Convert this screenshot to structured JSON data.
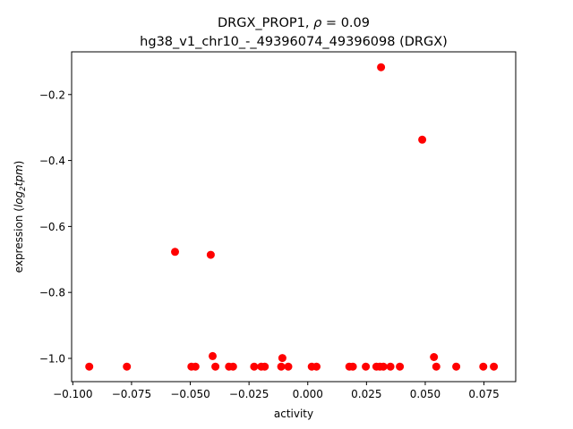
{
  "chart_data": {
    "type": "scatter",
    "title_line1_prefix": "DRGX_PROP1, ",
    "title_rho_symbol": "ρ",
    "title_line1_suffix": " = 0.09",
    "title_line2": "hg38_v1_chr10_-_49396074_49396098 (DRGX)",
    "xlabel": "activity",
    "ylabel_prefix": "expression (",
    "ylabel_math": "log",
    "ylabel_sub": "2",
    "ylabel_math2": "tpm",
    "ylabel_suffix": ")",
    "xlim": [
      -0.1005,
      0.0885
    ],
    "ylim": [
      -1.0705,
      -0.0705
    ],
    "x_ticks": [
      -0.1,
      -0.075,
      -0.05,
      -0.025,
      0.0,
      0.025,
      0.05,
      0.075
    ],
    "x_tick_labels": [
      "−0.100",
      "−0.075",
      "−0.050",
      "−0.025",
      "0.000",
      "0.025",
      "0.050",
      "0.075"
    ],
    "y_ticks": [
      -1.0,
      -0.8,
      -0.6,
      -0.4,
      -0.2
    ],
    "y_tick_labels": [
      "−1.0",
      "−0.8",
      "−0.6",
      "−0.4",
      "−0.2"
    ],
    "grid": false,
    "marker_color": "#ff0000",
    "points": [
      {
        "x": -0.093,
        "y": -1.025
      },
      {
        "x": -0.077,
        "y": -1.025
      },
      {
        "x": -0.0565,
        "y": -0.677
      },
      {
        "x": -0.0495,
        "y": -1.025
      },
      {
        "x": -0.0478,
        "y": -1.025
      },
      {
        "x": -0.0413,
        "y": -0.686
      },
      {
        "x": -0.0405,
        "y": -0.993
      },
      {
        "x": -0.0393,
        "y": -1.025
      },
      {
        "x": -0.0335,
        "y": -1.025
      },
      {
        "x": -0.0318,
        "y": -1.025
      },
      {
        "x": -0.0228,
        "y": -1.025
      },
      {
        "x": -0.0198,
        "y": -1.025
      },
      {
        "x": -0.0183,
        "y": -1.025
      },
      {
        "x": -0.0113,
        "y": -1.025
      },
      {
        "x": -0.0108,
        "y": -0.999
      },
      {
        "x": -0.0083,
        "y": -1.025
      },
      {
        "x": 0.0017,
        "y": -1.025
      },
      {
        "x": 0.0037,
        "y": -1.025
      },
      {
        "x": 0.0177,
        "y": -1.025
      },
      {
        "x": 0.0192,
        "y": -1.025
      },
      {
        "x": 0.0247,
        "y": -1.025
      },
      {
        "x": 0.0292,
        "y": -1.025
      },
      {
        "x": 0.0307,
        "y": -1.025
      },
      {
        "x": 0.0312,
        "y": -0.117
      },
      {
        "x": 0.0322,
        "y": -1.025
      },
      {
        "x": 0.0352,
        "y": -1.025
      },
      {
        "x": 0.0392,
        "y": -1.025
      },
      {
        "x": 0.0487,
        "y": -0.337
      },
      {
        "x": 0.0537,
        "y": -0.996
      },
      {
        "x": 0.0547,
        "y": -1.025
      },
      {
        "x": 0.0632,
        "y": -1.025
      },
      {
        "x": 0.0747,
        "y": -1.025
      },
      {
        "x": 0.0792,
        "y": -1.025
      }
    ]
  }
}
